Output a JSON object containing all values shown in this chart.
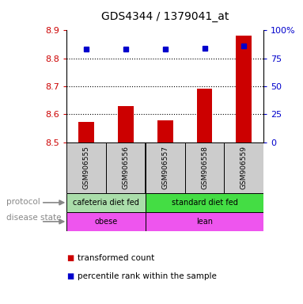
{
  "title": "GDS4344 / 1379041_at",
  "samples": [
    "GSM906555",
    "GSM906556",
    "GSM906557",
    "GSM906558",
    "GSM906559"
  ],
  "transformed_counts": [
    8.572,
    8.628,
    8.578,
    8.693,
    8.88
  ],
  "percentile_ranks": [
    83,
    83,
    83,
    84,
    86
  ],
  "bar_color": "#cc0000",
  "dot_color": "#0000cc",
  "ylim_left": [
    8.5,
    8.9
  ],
  "ylim_right": [
    0,
    100
  ],
  "yticks_left": [
    8.5,
    8.6,
    8.7,
    8.8,
    8.9
  ],
  "yticks_right": [
    0,
    25,
    50,
    75,
    100
  ],
  "ytick_labels_right": [
    "0",
    "25",
    "50",
    "75",
    "100%"
  ],
  "grid_values": [
    8.6,
    8.7,
    8.8
  ],
  "protocol_group1_label": "cafeteria diet fed",
  "protocol_group1_color": "#aaddaa",
  "protocol_group2_label": "standard diet fed",
  "protocol_group2_color": "#44dd44",
  "disease_group1_label": "obese",
  "disease_group2_label": "lean",
  "disease_color": "#ee55ee",
  "sample_bg_color": "#cccccc",
  "legend_red_label": "transformed count",
  "legend_blue_label": "percentile rank within the sample",
  "left_axis_color": "#cc0000",
  "right_axis_color": "#0000cc",
  "protocol_label": "protocol",
  "disease_label": "disease state",
  "label_color": "#888888",
  "arrow_color": "#888888"
}
